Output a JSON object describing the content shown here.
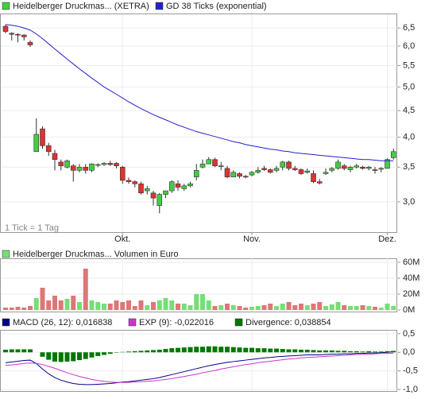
{
  "chart_data": [
    {
      "type": "candlestick",
      "log": true,
      "grid": true,
      "annotation": "1 Tick = 1 Tag",
      "categories": [
        null,
        null,
        null,
        null,
        null,
        null,
        null,
        null,
        null,
        null,
        null,
        null,
        null,
        null,
        null,
        null,
        null,
        null,
        null,
        "Okt.",
        null,
        null,
        null,
        null,
        null,
        null,
        null,
        null,
        null,
        null,
        null,
        null,
        null,
        null,
        null,
        null,
        null,
        null,
        null,
        null,
        "Nov.",
        null,
        null,
        null,
        null,
        null,
        null,
        null,
        null,
        null,
        null,
        null,
        null,
        null,
        null,
        null,
        null,
        null,
        null,
        null,
        null,
        null,
        "Dez.",
        null
      ],
      "ylim": [
        2.64,
        6.86
      ],
      "yticks": [
        {
          "value": 3,
          "label": "3,0"
        },
        {
          "value": 3.5,
          "label": "3,5"
        },
        {
          "value": 4,
          "label": "4,0"
        },
        {
          "value": 4.5,
          "label": "4,5"
        },
        {
          "value": 5,
          "label": "5,0"
        },
        {
          "value": 5.5,
          "label": "5,5"
        },
        {
          "value": 6,
          "label": "6,0"
        },
        {
          "value": 6.5,
          "label": "6,5"
        }
      ],
      "series": [
        {
          "name": "Heidelberger Druckmas... (XETRA)",
          "type": "candlestick",
          "color": "#44cc44",
          "up_color": "#44cc44",
          "down_color": "#dd3333",
          "open": [
            6.55,
            6.35,
            6.32,
            6.3,
            6.1,
            3.75,
            4.15,
            3.85,
            3.72,
            3.58,
            3.5,
            3.52,
            3.45,
            3.5,
            3.45,
            3.53,
            3.54,
            3.56,
            3.56,
            3.5,
            3.3,
            3.28,
            3.25,
            3.15,
            3.12,
            2.95,
            3.1,
            3.15,
            3.25,
            3.18,
            3.22,
            3.35,
            3.5,
            3.55,
            3.62,
            3.52,
            3.48,
            3.35,
            3.4,
            3.36,
            3.38,
            3.42,
            3.48,
            3.46,
            3.45,
            3.5,
            3.58,
            3.48,
            3.46,
            3.42,
            3.4,
            3.28,
            3.4,
            3.45,
            3.48,
            3.52,
            3.46,
            3.5,
            3.5,
            3.48,
            3.46,
            3.48,
            3.48,
            3.65
          ],
          "high": [
            6.6,
            6.38,
            6.35,
            6.32,
            6.15,
            4.35,
            4.2,
            3.9,
            3.78,
            3.62,
            3.62,
            3.55,
            3.55,
            3.55,
            3.56,
            3.56,
            3.58,
            3.6,
            3.58,
            3.52,
            3.34,
            3.3,
            3.28,
            3.22,
            3.15,
            3.12,
            3.15,
            3.3,
            3.3,
            3.25,
            3.28,
            3.55,
            3.62,
            3.66,
            3.65,
            3.58,
            3.52,
            3.45,
            3.42,
            3.38,
            3.44,
            3.5,
            3.52,
            3.48,
            3.52,
            3.6,
            3.6,
            3.52,
            3.48,
            3.48,
            3.45,
            3.32,
            3.48,
            3.5,
            3.62,
            3.55,
            3.52,
            3.55,
            3.52,
            3.52,
            3.5,
            3.5,
            3.64,
            3.8
          ],
          "low": [
            6.35,
            6.15,
            6.1,
            6.15,
            5.98,
            3.75,
            3.8,
            3.68,
            3.45,
            3.45,
            3.48,
            3.28,
            3.42,
            3.4,
            3.42,
            3.5,
            3.52,
            3.52,
            3.48,
            3.25,
            3.25,
            3.2,
            3.1,
            3.1,
            2.95,
            2.85,
            3.05,
            3.12,
            3.15,
            3.15,
            3.2,
            3.3,
            3.48,
            3.55,
            3.5,
            3.45,
            3.33,
            3.35,
            3.33,
            3.33,
            3.36,
            3.4,
            3.44,
            3.4,
            3.42,
            3.45,
            3.45,
            3.44,
            3.38,
            3.4,
            3.26,
            3.24,
            3.38,
            3.42,
            3.46,
            3.45,
            3.42,
            3.48,
            3.46,
            3.45,
            3.4,
            3.42,
            3.48,
            3.62
          ],
          "close": [
            6.4,
            6.32,
            6.3,
            6.25,
            6.03,
            4.05,
            3.85,
            3.75,
            3.62,
            3.52,
            3.6,
            3.45,
            3.5,
            3.45,
            3.55,
            3.54,
            3.56,
            3.54,
            3.52,
            3.3,
            3.28,
            3.25,
            3.12,
            3.18,
            3.05,
            3.1,
            3.15,
            3.28,
            3.2,
            3.22,
            3.25,
            3.45,
            3.55,
            3.62,
            3.52,
            3.52,
            3.35,
            3.42,
            3.36,
            3.35,
            3.42,
            3.45,
            3.46,
            3.42,
            3.48,
            3.58,
            3.48,
            3.46,
            3.4,
            3.44,
            3.28,
            3.26,
            3.42,
            3.48,
            3.58,
            3.48,
            3.5,
            3.52,
            3.48,
            3.5,
            3.45,
            3.48,
            3.62,
            3.75
          ]
        },
        {
          "name": "GD 38 Ticks (exponential)",
          "type": "line",
          "color": "#2222cc",
          "values": [
            6.6,
            6.58,
            6.55,
            6.5,
            6.44,
            6.33,
            6.2,
            6.06,
            5.92,
            5.79,
            5.66,
            5.54,
            5.42,
            5.31,
            5.2,
            5.1,
            5.0,
            4.92,
            4.84,
            4.76,
            4.68,
            4.61,
            4.54,
            4.48,
            4.42,
            4.37,
            4.32,
            4.27,
            4.22,
            4.18,
            4.14,
            4.1,
            4.07,
            4.04,
            4.01,
            3.98,
            3.95,
            3.92,
            3.9,
            3.87,
            3.85,
            3.83,
            3.81,
            3.79,
            3.78,
            3.76,
            3.75,
            3.73,
            3.72,
            3.71,
            3.7,
            3.69,
            3.68,
            3.67,
            3.66,
            3.65,
            3.64,
            3.63,
            3.62,
            3.62,
            3.61,
            3.6,
            3.6,
            3.6
          ]
        }
      ]
    },
    {
      "type": "bar",
      "grid": true,
      "ylim": [
        0,
        63000000
      ],
      "yticks": [
        {
          "value": 0,
          "label": "0M"
        },
        {
          "value": 20000000,
          "label": "20M"
        },
        {
          "value": 40000000,
          "label": "40M"
        },
        {
          "value": 60000000,
          "label": "60M"
        }
      ],
      "series": [
        {
          "name": "Heidelberger Druckmas... Volumen in Euro",
          "color": "#77dd77",
          "up_color": "#77dd77",
          "down_color": "#dd7777",
          "values": [
            3000000,
            3000000,
            4000000,
            3000000,
            5000000,
            15000000,
            28000000,
            12000000,
            18000000,
            12000000,
            14000000,
            18000000,
            10000000,
            52000000,
            12000000,
            10000000,
            8000000,
            8000000,
            12000000,
            10000000,
            12000000,
            5000000,
            12000000,
            6000000,
            10000000,
            12000000,
            15000000,
            12000000,
            8000000,
            8000000,
            6000000,
            20000000,
            20000000,
            12000000,
            5000000,
            6000000,
            8000000,
            6000000,
            5000000,
            3000000,
            4000000,
            5000000,
            6000000,
            8000000,
            5000000,
            8000000,
            10000000,
            6000000,
            8000000,
            6000000,
            8000000,
            10000000,
            5000000,
            7000000,
            10000000,
            6000000,
            5000000,
            5000000,
            6000000,
            5000000,
            4000000,
            3000000,
            8000000,
            5000000
          ]
        }
      ]
    },
    {
      "type": "line",
      "grid": true,
      "ylim": [
        -1.0,
        0.54
      ],
      "yticks": [
        {
          "value": -1.0,
          "label": "-1,0"
        },
        {
          "value": -0.5,
          "label": "-0,5"
        },
        {
          "value": 0,
          "label": "0,0"
        },
        {
          "value": 0.5,
          "label": "0,5"
        }
      ],
      "series": [
        {
          "name": "MACD (26, 12): 0,016838",
          "type": "line",
          "color": "#00008b",
          "values": [
            -0.28,
            -0.26,
            -0.24,
            -0.22,
            -0.21,
            -0.3,
            -0.45,
            -0.58,
            -0.68,
            -0.75,
            -0.8,
            -0.84,
            -0.86,
            -0.87,
            -0.87,
            -0.86,
            -0.85,
            -0.84,
            -0.82,
            -0.8,
            -0.79,
            -0.77,
            -0.75,
            -0.73,
            -0.71,
            -0.68,
            -0.64,
            -0.6,
            -0.56,
            -0.52,
            -0.48,
            -0.44,
            -0.4,
            -0.36,
            -0.33,
            -0.3,
            -0.27,
            -0.25,
            -0.23,
            -0.21,
            -0.19,
            -0.17,
            -0.15,
            -0.14,
            -0.12,
            -0.11,
            -0.1,
            -0.09,
            -0.08,
            -0.07,
            -0.07,
            -0.07,
            -0.06,
            -0.05,
            -0.05,
            -0.04,
            -0.04,
            -0.03,
            -0.03,
            -0.02,
            -0.02,
            -0.01,
            0.0,
            0.016838
          ]
        },
        {
          "name": "EXP (9): -0,022016",
          "type": "line",
          "color": "#cc33cc",
          "values": [
            -0.35,
            -0.34,
            -0.32,
            -0.3,
            -0.29,
            -0.3,
            -0.33,
            -0.38,
            -0.43,
            -0.49,
            -0.55,
            -0.6,
            -0.65,
            -0.69,
            -0.73,
            -0.76,
            -0.78,
            -0.8,
            -0.81,
            -0.81,
            -0.81,
            -0.8,
            -0.79,
            -0.78,
            -0.77,
            -0.75,
            -0.73,
            -0.71,
            -0.68,
            -0.65,
            -0.62,
            -0.59,
            -0.55,
            -0.52,
            -0.49,
            -0.45,
            -0.42,
            -0.39,
            -0.36,
            -0.33,
            -0.31,
            -0.28,
            -0.26,
            -0.24,
            -0.22,
            -0.2,
            -0.18,
            -0.17,
            -0.15,
            -0.14,
            -0.13,
            -0.12,
            -0.11,
            -0.1,
            -0.09,
            -0.08,
            -0.07,
            -0.06,
            -0.05,
            -0.05,
            -0.04,
            -0.03,
            -0.03,
            -0.022016
          ]
        },
        {
          "name": "Divergence: 0,038854",
          "type": "bar",
          "color": "#007700",
          "values": [
            0.07,
            0.08,
            0.08,
            0.08,
            0.08,
            0.0,
            -0.12,
            -0.2,
            -0.25,
            -0.26,
            -0.25,
            -0.24,
            -0.21,
            -0.18,
            -0.14,
            -0.1,
            -0.07,
            -0.04,
            -0.01,
            0.01,
            0.02,
            0.03,
            0.04,
            0.05,
            0.06,
            0.07,
            0.09,
            0.11,
            0.12,
            0.13,
            0.14,
            0.15,
            0.15,
            0.16,
            0.16,
            0.15,
            0.15,
            0.14,
            0.13,
            0.12,
            0.12,
            0.11,
            0.11,
            0.1,
            0.1,
            0.09,
            0.08,
            0.08,
            0.07,
            0.07,
            0.06,
            0.05,
            0.05,
            0.05,
            0.04,
            0.04,
            0.03,
            0.03,
            0.02,
            0.03,
            0.02,
            0.02,
            0.03,
            0.038854
          ]
        }
      ]
    }
  ]
}
